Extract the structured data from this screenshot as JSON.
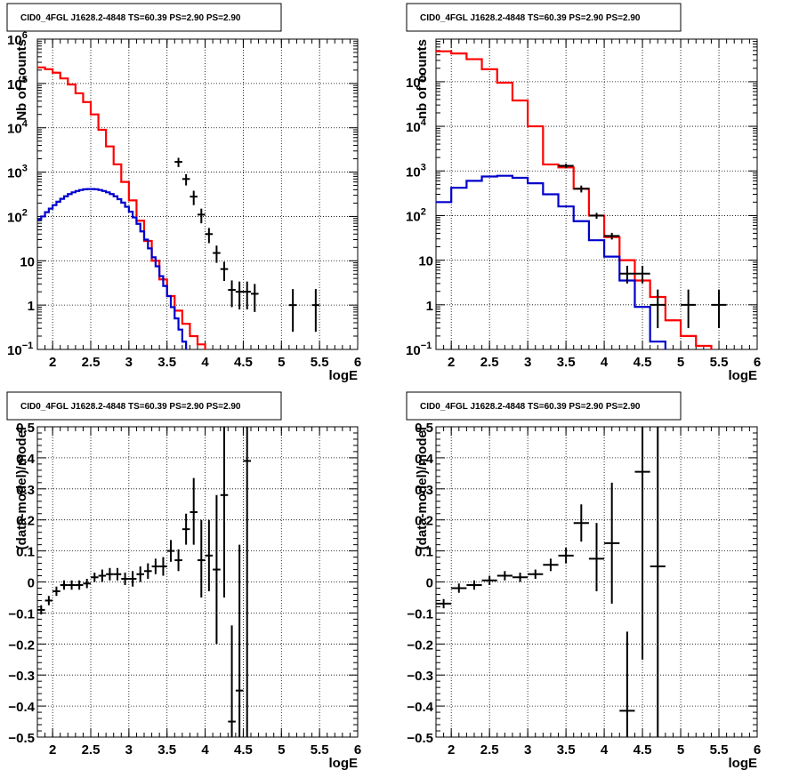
{
  "chart_data": [
    {
      "type": "line",
      "title": "CID0_4FGL J1628.2-4848 TS=60.39 PS=2.90 PS=2.90",
      "xlabel": "logE",
      "ylabel": "Nb of counts",
      "xlim": [
        1.8,
        6.0
      ],
      "ylim": [
        0.1,
        1000000
      ],
      "yscale": "log",
      "grid": true,
      "x_ticks": [
        "2",
        "2.5",
        "3",
        "3.5",
        "4",
        "4.5",
        "5",
        "5.5",
        "6"
      ],
      "y_ticks": [
        {
          "v": 0.1,
          "base": "10",
          "exp": "−1"
        },
        {
          "v": 1,
          "label": "1"
        },
        {
          "v": 10,
          "label": "10"
        },
        {
          "v": 100,
          "base": "10",
          "exp": "2"
        },
        {
          "v": 1000,
          "base": "10",
          "exp": "3"
        },
        {
          "v": 10000,
          "base": "10",
          "exp": "4"
        },
        {
          "v": 100000,
          "base": "10",
          "exp": "5"
        },
        {
          "v": 1000000,
          "base": "10",
          "exp": "6"
        }
      ],
      "series": [
        {
          "color": "#ff0000",
          "style": "step",
          "binwidth": 0.1,
          "x": [
            1.85,
            1.95,
            2.05,
            2.15,
            2.25,
            2.35,
            2.45,
            2.55,
            2.65,
            2.75,
            2.85,
            2.95,
            3.05,
            3.15,
            3.25,
            3.35,
            3.45,
            3.55,
            3.65,
            3.75,
            3.85,
            3.95,
            4.05,
            4.15,
            4.25,
            4.35,
            4.45,
            4.55,
            4.65,
            4.75,
            4.85,
            4.95,
            5.05,
            5.15,
            5.25,
            5.35,
            5.45,
            5.55,
            5.65,
            5.75,
            5.85,
            5.95
          ],
          "y": [
            230000,
            210000,
            175000,
            130000,
            95000,
            60000,
            38000,
            20000,
            9000,
            3800,
            1500,
            600,
            230,
            80,
            28,
            10,
            3.8,
            1.6,
            0.75,
            0.38,
            0.2,
            0.13,
            0.08,
            0.05,
            0.03,
            0.02,
            0.01,
            0.01,
            0.01,
            0.01,
            0.01,
            0.01,
            0.01,
            0.01,
            0.01,
            0.01,
            0.01,
            0.01,
            0.01,
            0.01,
            0.01,
            0.01
          ]
        },
        {
          "color": "#0000cc",
          "style": "step",
          "binwidth": 0.05,
          "x": [
            1.825,
            1.875,
            1.925,
            1.975,
            2.025,
            2.075,
            2.125,
            2.175,
            2.225,
            2.275,
            2.325,
            2.375,
            2.425,
            2.475,
            2.525,
            2.575,
            2.625,
            2.675,
            2.725,
            2.775,
            2.825,
            2.875,
            2.925,
            2.975,
            3.025,
            3.075,
            3.125,
            3.175,
            3.225,
            3.275,
            3.325,
            3.375,
            3.425,
            3.475,
            3.525,
            3.575,
            3.625,
            3.675,
            3.725,
            3.775,
            3.825,
            3.875,
            3.925,
            3.975,
            4.025,
            4.075,
            4.125,
            4.175,
            4.225,
            4.275,
            4.325,
            4.375,
            4.425,
            4.475,
            4.525,
            4.575,
            4.625,
            4.675,
            4.725,
            4.775,
            4.825,
            4.875,
            4.925,
            4.975,
            5.025,
            5.075,
            5.125,
            5.175,
            5.225,
            5.275,
            5.325,
            5.375,
            5.425,
            5.475,
            5.525,
            5.575,
            5.625,
            5.675,
            5.725,
            5.775,
            5.825,
            5.875,
            5.925,
            5.975
          ],
          "y": [
            85,
            100,
            125,
            150,
            180,
            215,
            250,
            285,
            320,
            350,
            375,
            395,
            410,
            415,
            415,
            410,
            395,
            375,
            350,
            320,
            285,
            245,
            205,
            165,
            128,
            95,
            68,
            46,
            30,
            19,
            12,
            7.5,
            4.5,
            2.7,
            1.6,
            0.9,
            0.5,
            0.28,
            0.15,
            0.09,
            0.05,
            0.03,
            0.02,
            0.01,
            0.01,
            0.01,
            0.01,
            0.01,
            0.01,
            0.01,
            0.01,
            0.01,
            0.01,
            0.01,
            0.01,
            0.01,
            0.01,
            0.01,
            0.01,
            0.01,
            0.01,
            0.01,
            0.01,
            0.01,
            0.01,
            0.01,
            0.01,
            0.01,
            0.01,
            0.01,
            0.01,
            0.01,
            0.01,
            0.01,
            0.01,
            0.01,
            0.01,
            0.01,
            0.01,
            0.01,
            0.01,
            0.01,
            0.01,
            0.01
          ]
        },
        {
          "color": "#000000",
          "style": "errorbar",
          "xerr": 0.05,
          "x": [
            3.65,
            3.75,
            3.85,
            3.95,
            4.05,
            4.15,
            4.25,
            4.35,
            4.45,
            4.55,
            4.65,
            4.85,
            5.05,
            5.15,
            5.45
          ],
          "y": [
            1700,
            700,
            280,
            110,
            40,
            15,
            6.5,
            2.2,
            2.0,
            2.0,
            1.8,
            0,
            0,
            1.0,
            1.0
          ],
          "ylo": [
            1300,
            500,
            180,
            70,
            25,
            9,
            3.5,
            0.9,
            0.8,
            0.8,
            0.7,
            0,
            0,
            0.25,
            0.25
          ],
          "yhi": [
            2100,
            900,
            380,
            150,
            55,
            22,
            9.5,
            3.6,
            3.4,
            3.4,
            3.0,
            0,
            0,
            2.3,
            2.3
          ]
        }
      ]
    },
    {
      "type": "line",
      "title": "CID0_4FGL J1628.2-4848 TS=60.39 PS=2.90 PS=2.90",
      "xlabel": "logE",
      "ylabel": "nb of counts",
      "xlim": [
        1.8,
        6.0
      ],
      "ylim": [
        0.1,
        900000
      ],
      "yscale": "log",
      "grid": true,
      "x_ticks": [
        "2",
        "2.5",
        "3",
        "3.5",
        "4",
        "4.5",
        "5",
        "5.5",
        "6"
      ],
      "y_ticks": [
        {
          "v": 0.1,
          "base": "10",
          "exp": "−1"
        },
        {
          "v": 1,
          "label": "1"
        },
        {
          "v": 10,
          "label": "10"
        },
        {
          "v": 100,
          "base": "10",
          "exp": "2"
        },
        {
          "v": 1000,
          "base": "10",
          "exp": "3"
        },
        {
          "v": 10000,
          "base": "10",
          "exp": "4"
        },
        {
          "v": 100000,
          "base": "10",
          "exp": "5"
        }
      ],
      "series": [
        {
          "color": "#ff0000",
          "style": "step",
          "binwidth": 0.2,
          "x": [
            1.9,
            2.1,
            2.3,
            2.5,
            2.7,
            2.9,
            3.1,
            3.3,
            3.5,
            3.7,
            3.9,
            4.1,
            4.3,
            4.5,
            4.7,
            4.9,
            5.1,
            5.3,
            5.5,
            5.7,
            5.9
          ],
          "y": [
            480000,
            430000,
            320000,
            190000,
            95000,
            38000,
            10000,
            1400,
            1200,
            400,
            100,
            33,
            10,
            3.5,
            1.5,
            0.45,
            0.2,
            0.12,
            0.08,
            0.05,
            0.05
          ]
        },
        {
          "color": "#0000cc",
          "style": "step",
          "binwidth": 0.2,
          "x": [
            1.9,
            2.1,
            2.3,
            2.5,
            2.7,
            2.9,
            3.1,
            3.3,
            3.5,
            3.7,
            3.9,
            4.1,
            4.3,
            4.5,
            4.7,
            4.9,
            5.1,
            5.3,
            5.5,
            5.7,
            5.9
          ],
          "y": [
            200,
            420,
            600,
            750,
            780,
            700,
            530,
            300,
            160,
            75,
            28,
            12,
            3.5,
            0.9,
            0.15,
            0.03,
            0.03,
            0.03,
            0.03,
            0.03,
            0.03
          ]
        },
        {
          "color": "#000000",
          "style": "errorbar",
          "xerr": 0.1,
          "x": [
            3.5,
            3.7,
            3.9,
            4.1,
            4.3,
            4.5,
            4.7,
            4.9,
            5.1,
            5.3,
            5.5
          ],
          "y": [
            1300,
            400,
            100,
            35,
            5,
            5,
            1,
            0,
            1,
            0,
            1
          ],
          "ylo": [
            1150,
            330,
            85,
            29,
            3,
            3,
            0.3,
            0,
            0.3,
            0,
            0.3
          ],
          "yhi": [
            1450,
            470,
            115,
            41,
            7.5,
            7.5,
            2.2,
            0,
            2.2,
            0,
            2.2
          ]
        }
      ]
    },
    {
      "type": "scatter",
      "title": "CID0_4FGL J1628.2-4848 TS=60.39 PS=2.90 PS=2.90",
      "xlabel": "logE",
      "ylabel": "(data-model)/model",
      "xlim": [
        1.8,
        6.0
      ],
      "ylim": [
        -0.5,
        0.5
      ],
      "grid": true,
      "x_ticks": [
        "2",
        "2.5",
        "3",
        "3.5",
        "4",
        "4.5",
        "5",
        "5.5",
        "6"
      ],
      "y_ticks": [
        "−0.5",
        "−0.4",
        "−0.3",
        "−0.2",
        "−0.1",
        "0",
        "0.1",
        "0.2",
        "0.3",
        "0.4",
        "0.5"
      ],
      "series": [
        {
          "color": "#000000",
          "style": "errorbar",
          "xerr": 0.05,
          "x": [
            1.85,
            1.95,
            2.05,
            2.15,
            2.25,
            2.35,
            2.45,
            2.55,
            2.65,
            2.75,
            2.85,
            2.95,
            3.05,
            3.15,
            3.25,
            3.35,
            3.45,
            3.55,
            3.65,
            3.75,
            3.85,
            3.95,
            4.05,
            4.15,
            4.25,
            4.35,
            4.45,
            4.55
          ],
          "y": [
            -0.09,
            -0.06,
            -0.03,
            -0.01,
            -0.01,
            -0.01,
            -0.005,
            0.015,
            0.02,
            0.025,
            0.025,
            0.01,
            0.01,
            0.025,
            0.035,
            0.05,
            0.05,
            0.1,
            0.07,
            0.17,
            0.225,
            0.07,
            0.085,
            0.04,
            0.28,
            -0.45,
            -0.35,
            0.39
          ],
          "ylo": [
            -0.105,
            -0.075,
            -0.045,
            -0.025,
            -0.025,
            -0.025,
            -0.02,
            0.0,
            0.0,
            0.005,
            0.005,
            -0.01,
            -0.015,
            0.0,
            0.01,
            0.025,
            0.02,
            0.065,
            0.035,
            0.12,
            0.12,
            -0.05,
            -0.03,
            -0.2,
            -0.05,
            -0.5,
            -0.5,
            -0.5
          ],
          "yhi": [
            -0.075,
            -0.045,
            -0.015,
            0.005,
            0.005,
            0.005,
            0.01,
            0.03,
            0.04,
            0.045,
            0.045,
            0.03,
            0.035,
            0.05,
            0.06,
            0.075,
            0.08,
            0.135,
            0.105,
            0.22,
            0.335,
            0.2,
            0.2,
            0.28,
            0.5,
            -0.14,
            0.12,
            0.5
          ]
        }
      ]
    },
    {
      "type": "scatter",
      "title": "CID0_4FGL J1628.2-4848 TS=60.39 PS=2.90 PS=2.90",
      "xlabel": "logE",
      "ylabel": "(data-model)/model",
      "xlim": [
        1.8,
        6.0
      ],
      "ylim": [
        -0.5,
        0.5
      ],
      "grid": true,
      "x_ticks": [
        "2",
        "2.5",
        "3",
        "3.5",
        "4",
        "4.5",
        "5",
        "5.5",
        "6"
      ],
      "y_ticks": [
        "−0.5",
        "−0.4",
        "−0.3",
        "−0.2",
        "−0.1",
        "0",
        "0.1",
        "0.2",
        "0.3",
        "0.4",
        "0.5"
      ],
      "series": [
        {
          "color": "#000000",
          "style": "errorbar",
          "xerr": 0.1,
          "x": [
            1.9,
            2.1,
            2.3,
            2.5,
            2.7,
            2.9,
            3.1,
            3.3,
            3.5,
            3.7,
            3.9,
            4.1,
            4.3,
            4.5,
            4.7
          ],
          "y": [
            -0.07,
            -0.02,
            -0.01,
            0.005,
            0.02,
            0.015,
            0.025,
            0.055,
            0.085,
            0.19,
            0.075,
            0.125,
            -0.415,
            0.355,
            0.05
          ],
          "ylo": [
            -0.085,
            -0.035,
            -0.025,
            -0.01,
            0.005,
            0.0,
            0.01,
            0.035,
            0.06,
            0.13,
            -0.03,
            -0.07,
            -0.5,
            -0.25,
            -0.5
          ],
          "yhi": [
            -0.055,
            -0.005,
            0.005,
            0.02,
            0.035,
            0.03,
            0.04,
            0.075,
            0.11,
            0.25,
            0.19,
            0.32,
            -0.16,
            0.5,
            0.5
          ]
        }
      ]
    }
  ]
}
